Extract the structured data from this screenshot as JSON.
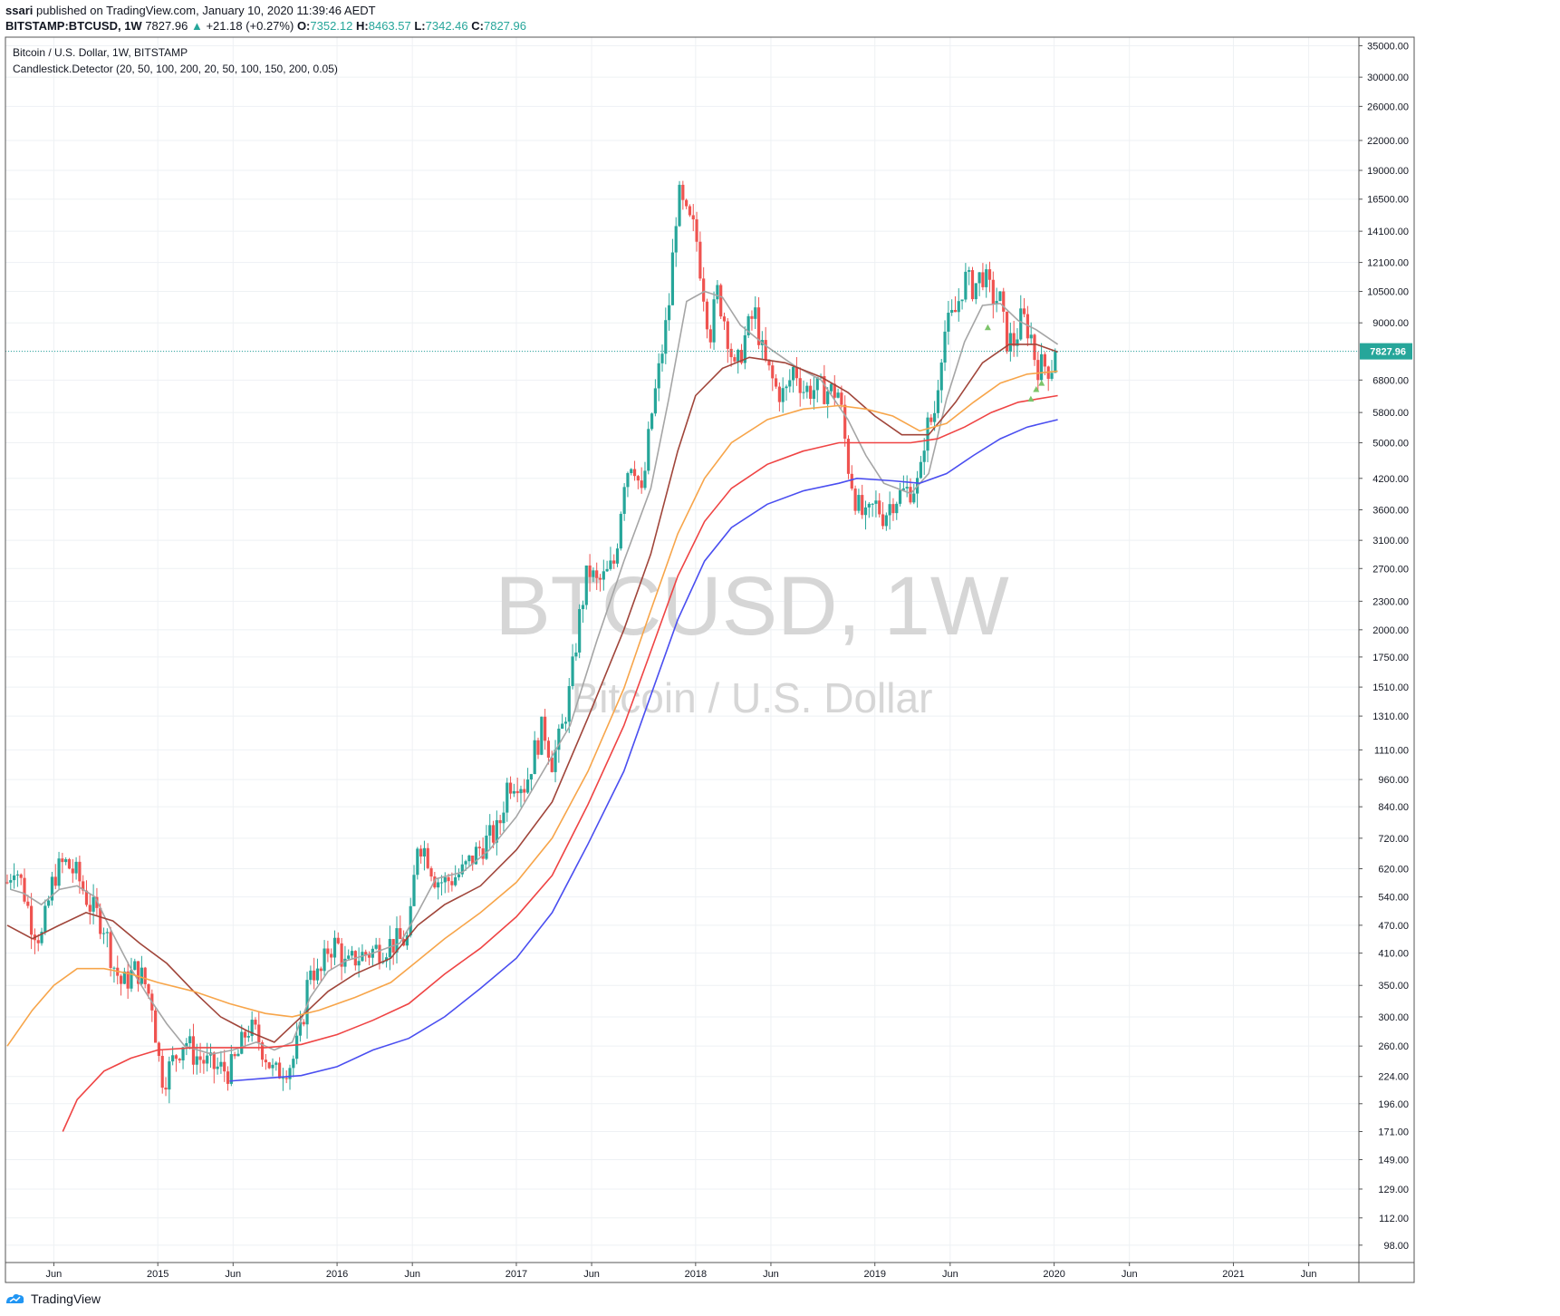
{
  "header": {
    "author": "ssari",
    "published_text": "published on TradingView.com, January 10, 2020 11:39:46 AEDT",
    "symbol": "BITSTAMP:BTCUSD, 1W",
    "last": "7827.96",
    "change": "+21.18 (+0.27%)",
    "open_label": "O:",
    "open": "7352.12",
    "high_label": "H:",
    "high": "8463.57",
    "low_label": "L:",
    "low": "7342.46",
    "close_label": "C:",
    "close": "7827.96"
  },
  "legend": {
    "line1": "Bitcoin / U.S. Dollar, 1W, BITSTAMP",
    "line2": "Candlestick.Detector (20, 50, 100, 200, 20, 50, 100, 150, 200, 0.05)"
  },
  "watermark": {
    "big": "BTCUSD, 1W",
    "small": "Bitcoin / U.S. Dollar"
  },
  "footer": {
    "brand": "TradingView"
  },
  "colors": {
    "up": "#26a69a",
    "down": "#ef5350",
    "ma20": "#a5a5a5",
    "ma50": "#a0453a",
    "ma100": "#f7a54a",
    "ma150": "#ef4444",
    "ma200": "#4a4ef0",
    "current": "#26a69a",
    "grid": "#eef1f4"
  },
  "chart_data": {
    "type": "candlestick",
    "scale": "log",
    "ylim": [
      90,
      36500
    ],
    "price_ticks": [
      35000,
      30000,
      26000,
      22000,
      19000,
      16500,
      14100,
      12100,
      10500,
      9000,
      7827.96,
      6800,
      5800,
      5000,
      4200,
      3600,
      3100,
      2700,
      2300,
      2000,
      1750,
      1510,
      1310,
      1110,
      960,
      840,
      720,
      620,
      540,
      470,
      410,
      350,
      300,
      260,
      224,
      196,
      171,
      149,
      129,
      112,
      98
    ],
    "price_tick_labels": [
      "35000.00",
      "30000.00",
      "26000.00",
      "22000.00",
      "19000.00",
      "16500.00",
      "14100.00",
      "12100.00",
      "10500.00",
      "9000.00",
      "7827.96",
      "6800.00",
      "5800.00",
      "5000.00",
      "4200.00",
      "3600.00",
      "3100.00",
      "2700.00",
      "2300.00",
      "2000.00",
      "1750.00",
      "1510.00",
      "1310.00",
      "1110.00",
      "960.00",
      "840.00",
      "720.00",
      "620.00",
      "540.00",
      "470.00",
      "410.00",
      "350.00",
      "300.00",
      "260.00",
      "224.00",
      "196.00",
      "171.00",
      "149.00",
      "129.00",
      "112.00",
      "98.00"
    ],
    "time_ticks": [
      {
        "label": "Jun",
        "t": 2014.42
      },
      {
        "label": "2015",
        "t": 2015.0
      },
      {
        "label": "Jun",
        "t": 2015.42
      },
      {
        "label": "2016",
        "t": 2016.0
      },
      {
        "label": "Jun",
        "t": 2016.42
      },
      {
        "label": "2017",
        "t": 2017.0
      },
      {
        "label": "Jun",
        "t": 2017.42
      },
      {
        "label": "2018",
        "t": 2018.0
      },
      {
        "label": "Jun",
        "t": 2018.42
      },
      {
        "label": "2019",
        "t": 2019.0
      },
      {
        "label": "Jun",
        "t": 2019.42
      },
      {
        "label": "2020",
        "t": 2020.0
      },
      {
        "label": "Jun",
        "t": 2020.42
      },
      {
        "label": "2021",
        "t": 2021.0
      },
      {
        "label": "Jun",
        "t": 2021.42
      }
    ],
    "xlim": [
      2014.15,
      2021.7
    ],
    "current_price": 7827.96,
    "current_price_label": "7827.96",
    "price_path": [
      [
        2014.16,
        580
      ],
      [
        2014.2,
        640
      ],
      [
        2014.25,
        560
      ],
      [
        2014.3,
        470
      ],
      [
        2014.35,
        440
      ],
      [
        2014.42,
        600
      ],
      [
        2014.48,
        640
      ],
      [
        2014.55,
        600
      ],
      [
        2014.62,
        520
      ],
      [
        2014.7,
        470
      ],
      [
        2014.75,
        390
      ],
      [
        2014.8,
        350
      ],
      [
        2014.88,
        380
      ],
      [
        2014.92,
        360
      ],
      [
        2014.97,
        320
      ],
      [
        2015.0,
        250
      ],
      [
        2015.03,
        220
      ],
      [
        2015.08,
        240
      ],
      [
        2015.15,
        270
      ],
      [
        2015.2,
        250
      ],
      [
        2015.3,
        235
      ],
      [
        2015.4,
        230
      ],
      [
        2015.45,
        250
      ],
      [
        2015.5,
        285
      ],
      [
        2015.55,
        275
      ],
      [
        2015.6,
        250
      ],
      [
        2015.65,
        225
      ],
      [
        2015.7,
        235
      ],
      [
        2015.75,
        240
      ],
      [
        2015.8,
        280
      ],
      [
        2015.85,
        390
      ],
      [
        2015.9,
        360
      ],
      [
        2015.95,
        420
      ],
      [
        2016.0,
        430
      ],
      [
        2016.05,
        380
      ],
      [
        2016.1,
        400
      ],
      [
        2016.2,
        415
      ],
      [
        2016.3,
        430
      ],
      [
        2016.4,
        440
      ],
      [
        2016.45,
        720
      ],
      [
        2016.5,
        670
      ],
      [
        2016.55,
        590
      ],
      [
        2016.6,
        580
      ],
      [
        2016.7,
        610
      ],
      [
        2016.8,
        690
      ],
      [
        2016.9,
        750
      ],
      [
        2016.95,
        940
      ],
      [
        2017.0,
        970
      ],
      [
        2017.05,
        930
      ],
      [
        2017.1,
        1100
      ],
      [
        2017.15,
        1250
      ],
      [
        2017.2,
        1050
      ],
      [
        2017.25,
        1200
      ],
      [
        2017.3,
        1500
      ],
      [
        2017.35,
        2100
      ],
      [
        2017.4,
        2700
      ],
      [
        2017.45,
        2500
      ],
      [
        2017.5,
        2600
      ],
      [
        2017.55,
        2800
      ],
      [
        2017.6,
        4200
      ],
      [
        2017.65,
        4700
      ],
      [
        2017.7,
        3800
      ],
      [
        2017.75,
        5600
      ],
      [
        2017.8,
        7300
      ],
      [
        2017.85,
        9700
      ],
      [
        2017.9,
        17000
      ],
      [
        2017.95,
        15000
      ],
      [
        2018.0,
        14000
      ],
      [
        2018.03,
        11500
      ],
      [
        2018.08,
        8500
      ],
      [
        2018.12,
        10500
      ],
      [
        2018.17,
        8900
      ],
      [
        2018.22,
        7000
      ],
      [
        2018.28,
        8500
      ],
      [
        2018.33,
        9500
      ],
      [
        2018.38,
        7500
      ],
      [
        2018.45,
        6500
      ],
      [
        2018.5,
        6300
      ],
      [
        2018.55,
        7300
      ],
      [
        2018.6,
        6500
      ],
      [
        2018.7,
        6500
      ],
      [
        2018.8,
        6400
      ],
      [
        2018.85,
        4500
      ],
      [
        2018.9,
        3700
      ],
      [
        2018.95,
        3400
      ],
      [
        2019.0,
        3700
      ],
      [
        2019.05,
        3500
      ],
      [
        2019.1,
        3800
      ],
      [
        2019.2,
        4000
      ],
      [
        2019.25,
        4100
      ],
      [
        2019.28,
        5300
      ],
      [
        2019.33,
        5700
      ],
      [
        2019.38,
        8500
      ],
      [
        2019.45,
        9500
      ],
      [
        2019.5,
        11200
      ],
      [
        2019.55,
        10700
      ],
      [
        2019.6,
        11500
      ],
      [
        2019.65,
        10300
      ],
      [
        2019.7,
        10000
      ],
      [
        2019.73,
        8300
      ],
      [
        2019.78,
        8200
      ],
      [
        2019.82,
        9300
      ],
      [
        2019.87,
        8500
      ],
      [
        2019.9,
        7300
      ],
      [
        2019.95,
        7300
      ],
      [
        2019.98,
        7200
      ],
      [
        2020.02,
        7827.96
      ]
    ],
    "ma20": [
      [
        2014.18,
        560
      ],
      [
        2014.25,
        550
      ],
      [
        2014.35,
        520
      ],
      [
        2014.45,
        560
      ],
      [
        2014.55,
        570
      ],
      [
        2014.65,
        540
      ],
      [
        2014.75,
        450
      ],
      [
        2014.85,
        380
      ],
      [
        2014.95,
        330
      ],
      [
        2015.05,
        290
      ],
      [
        2015.15,
        260
      ],
      [
        2015.3,
        250
      ],
      [
        2015.42,
        255
      ],
      [
        2015.55,
        265
      ],
      [
        2015.65,
        255
      ],
      [
        2015.75,
        265
      ],
      [
        2015.85,
        330
      ],
      [
        2015.95,
        375
      ],
      [
        2016.05,
        395
      ],
      [
        2016.2,
        410
      ],
      [
        2016.35,
        430
      ],
      [
        2016.45,
        500
      ],
      [
        2016.55,
        590
      ],
      [
        2016.7,
        610
      ],
      [
        2016.85,
        680
      ],
      [
        2017.0,
        800
      ],
      [
        2017.15,
        1000
      ],
      [
        2017.3,
        1250
      ],
      [
        2017.45,
        1900
      ],
      [
        2017.6,
        2800
      ],
      [
        2017.75,
        4000
      ],
      [
        2017.85,
        6200
      ],
      [
        2017.95,
        10000
      ],
      [
        2018.05,
        10500
      ],
      [
        2018.15,
        10200
      ],
      [
        2018.25,
        8900
      ],
      [
        2018.4,
        8000
      ],
      [
        2018.55,
        7300
      ],
      [
        2018.7,
        6800
      ],
      [
        2018.85,
        5600
      ],
      [
        2018.95,
        4700
      ],
      [
        2019.05,
        4100
      ],
      [
        2019.2,
        3900
      ],
      [
        2019.3,
        4300
      ],
      [
        2019.4,
        6200
      ],
      [
        2019.5,
        8200
      ],
      [
        2019.6,
        9800
      ],
      [
        2019.7,
        9900
      ],
      [
        2019.8,
        9100
      ],
      [
        2019.9,
        8700
      ],
      [
        2020.02,
        8100
      ]
    ],
    "ma50": [
      [
        2014.16,
        470
      ],
      [
        2014.3,
        440
      ],
      [
        2014.45,
        470
      ],
      [
        2014.6,
        500
      ],
      [
        2014.75,
        480
      ],
      [
        2014.9,
        430
      ],
      [
        2015.05,
        390
      ],
      [
        2015.2,
        340
      ],
      [
        2015.35,
        300
      ],
      [
        2015.5,
        280
      ],
      [
        2015.65,
        265
      ],
      [
        2015.8,
        300
      ],
      [
        2015.95,
        340
      ],
      [
        2016.1,
        370
      ],
      [
        2016.3,
        400
      ],
      [
        2016.45,
        470
      ],
      [
        2016.6,
        520
      ],
      [
        2016.8,
        570
      ],
      [
        2017.0,
        680
      ],
      [
        2017.2,
        860
      ],
      [
        2017.4,
        1300
      ],
      [
        2017.6,
        2000
      ],
      [
        2017.75,
        2900
      ],
      [
        2017.9,
        4800
      ],
      [
        2018.0,
        6300
      ],
      [
        2018.15,
        7200
      ],
      [
        2018.3,
        7600
      ],
      [
        2018.5,
        7400
      ],
      [
        2018.7,
        6900
      ],
      [
        2018.85,
        6400
      ],
      [
        2019.0,
        5700
      ],
      [
        2019.15,
        5200
      ],
      [
        2019.3,
        5200
      ],
      [
        2019.45,
        6100
      ],
      [
        2019.6,
        7400
      ],
      [
        2019.75,
        8100
      ],
      [
        2019.9,
        8100
      ],
      [
        2020.02,
        7800
      ]
    ],
    "ma100": [
      [
        2014.16,
        260
      ],
      [
        2014.3,
        310
      ],
      [
        2014.42,
        350
      ],
      [
        2014.55,
        380
      ],
      [
        2014.7,
        380
      ],
      [
        2014.85,
        370
      ],
      [
        2015.0,
        355
      ],
      [
        2015.2,
        340
      ],
      [
        2015.4,
        320
      ],
      [
        2015.6,
        305
      ],
      [
        2015.75,
        300
      ],
      [
        2015.9,
        310
      ],
      [
        2016.1,
        330
      ],
      [
        2016.3,
        355
      ],
      [
        2016.45,
        395
      ],
      [
        2016.6,
        440
      ],
      [
        2016.8,
        500
      ],
      [
        2017.0,
        580
      ],
      [
        2017.2,
        720
      ],
      [
        2017.4,
        1000
      ],
      [
        2017.6,
        1500
      ],
      [
        2017.75,
        2200
      ],
      [
        2017.9,
        3200
      ],
      [
        2018.05,
        4200
      ],
      [
        2018.2,
        5000
      ],
      [
        2018.4,
        5600
      ],
      [
        2018.6,
        5900
      ],
      [
        2018.8,
        6000
      ],
      [
        2018.95,
        5900
      ],
      [
        2019.1,
        5700
      ],
      [
        2019.25,
        5300
      ],
      [
        2019.4,
        5500
      ],
      [
        2019.55,
        6100
      ],
      [
        2019.7,
        6700
      ],
      [
        2019.85,
        7000
      ],
      [
        2020.02,
        7100
      ]
    ],
    "ma150": [
      [
        2014.47,
        171
      ],
      [
        2014.55,
        200
      ],
      [
        2014.7,
        230
      ],
      [
        2014.85,
        245
      ],
      [
        2015.0,
        255
      ],
      [
        2015.2,
        258
      ],
      [
        2015.4,
        258
      ],
      [
        2015.6,
        258
      ],
      [
        2015.8,
        262
      ],
      [
        2016.0,
        275
      ],
      [
        2016.2,
        295
      ],
      [
        2016.4,
        320
      ],
      [
        2016.6,
        370
      ],
      [
        2016.8,
        420
      ],
      [
        2017.0,
        490
      ],
      [
        2017.2,
        600
      ],
      [
        2017.4,
        850
      ],
      [
        2017.6,
        1250
      ],
      [
        2017.75,
        1800
      ],
      [
        2017.9,
        2600
      ],
      [
        2018.05,
        3400
      ],
      [
        2018.2,
        4000
      ],
      [
        2018.4,
        4500
      ],
      [
        2018.6,
        4800
      ],
      [
        2018.8,
        5000
      ],
      [
        2019.0,
        5000
      ],
      [
        2019.2,
        5000
      ],
      [
        2019.35,
        5100
      ],
      [
        2019.5,
        5400
      ],
      [
        2019.65,
        5800
      ],
      [
        2019.8,
        6100
      ],
      [
        2020.02,
        6300
      ]
    ],
    "ma200": [
      [
        2015.4,
        219
      ],
      [
        2015.6,
        222
      ],
      [
        2015.8,
        225
      ],
      [
        2016.0,
        235
      ],
      [
        2016.2,
        255
      ],
      [
        2016.4,
        270
      ],
      [
        2016.6,
        300
      ],
      [
        2016.8,
        345
      ],
      [
        2017.0,
        400
      ],
      [
        2017.2,
        500
      ],
      [
        2017.4,
        700
      ],
      [
        2017.6,
        1000
      ],
      [
        2017.75,
        1450
      ],
      [
        2017.9,
        2100
      ],
      [
        2018.05,
        2800
      ],
      [
        2018.2,
        3300
      ],
      [
        2018.4,
        3700
      ],
      [
        2018.6,
        3950
      ],
      [
        2018.8,
        4100
      ],
      [
        2018.9,
        4200
      ],
      [
        2019.1,
        4150
      ],
      [
        2019.25,
        4100
      ],
      [
        2019.4,
        4300
      ],
      [
        2019.55,
        4700
      ],
      [
        2019.7,
        5100
      ],
      [
        2019.85,
        5400
      ],
      [
        2020.02,
        5600
      ]
    ],
    "markers": [
      [
        2019.63,
        8800
      ],
      [
        2019.87,
        6200
      ],
      [
        2019.9,
        6500
      ],
      [
        2019.93,
        6700
      ]
    ]
  }
}
